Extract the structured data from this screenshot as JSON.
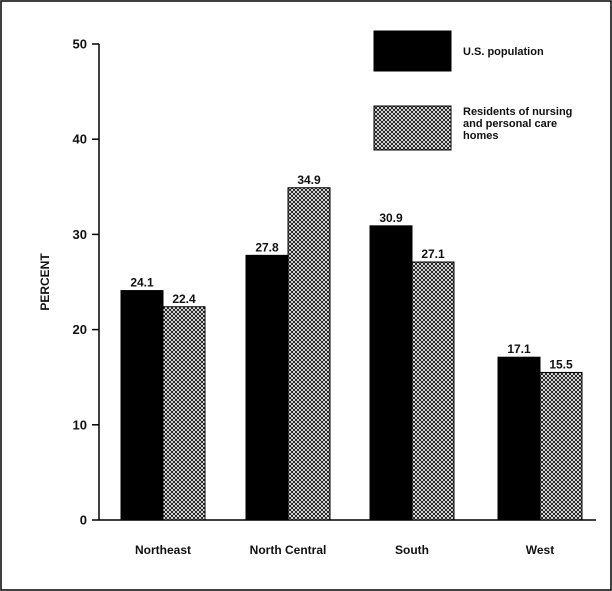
{
  "chart_data": {
    "type": "bar",
    "categories": [
      "Northeast",
      "North Central",
      "South",
      "West"
    ],
    "series": [
      {
        "name": "U.S. population",
        "values": [
          24.1,
          27.8,
          30.9,
          17.1
        ],
        "pattern": "solid",
        "color": "#000000"
      },
      {
        "name": "Residents of nursing and personal care homes",
        "values": [
          22.4,
          34.9,
          27.1,
          15.5
        ],
        "pattern": "crosshatch",
        "color": "#000000"
      }
    ],
    "data_labels": [
      [
        "24.1",
        "27.8",
        "30.9",
        "17.1"
      ],
      [
        "22.4",
        "34.9",
        "27.1",
        "15.5"
      ]
    ],
    "legend_lines": [
      [
        "U.S. population"
      ],
      [
        "Residents of nursing",
        "and personal care",
        "homes"
      ]
    ],
    "title": "",
    "xlabel": "",
    "ylabel": "PERCENT",
    "ylim": [
      0,
      50
    ],
    "yticks": [
      "0",
      "10",
      "20",
      "30",
      "40",
      "50"
    ],
    "grid": false,
    "legend_position": "top-right"
  }
}
